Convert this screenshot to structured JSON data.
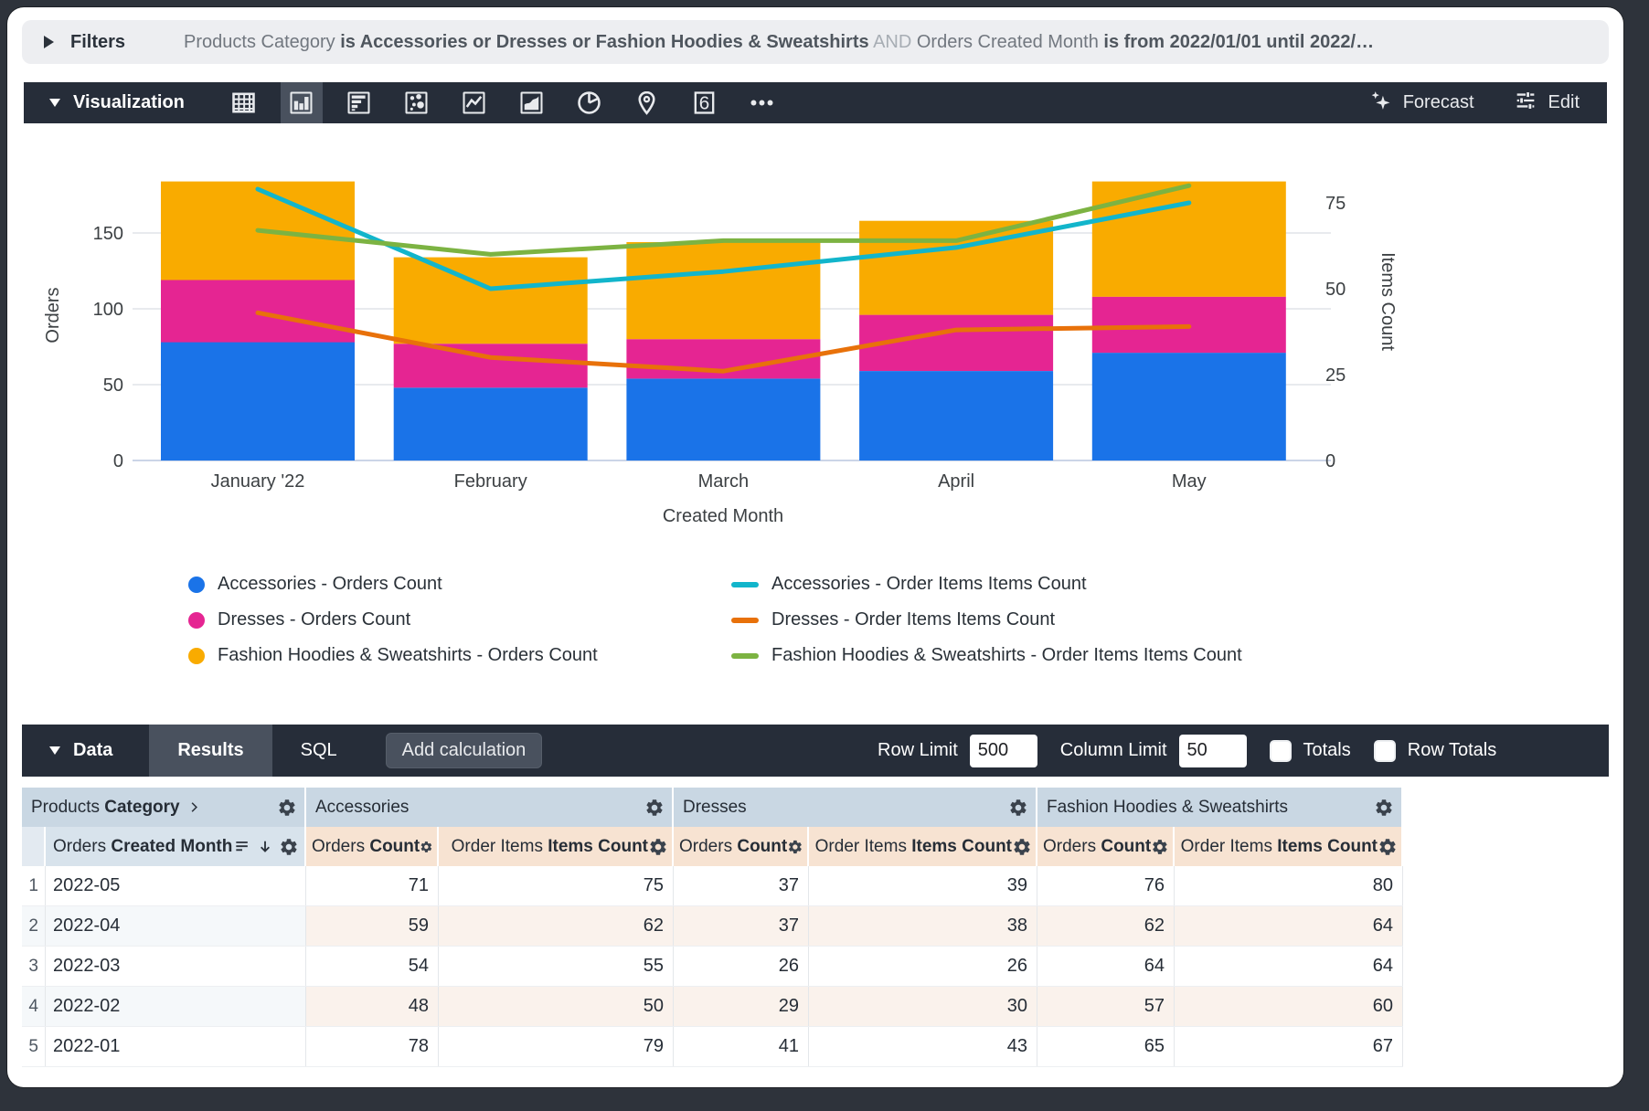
{
  "filters": {
    "label": "Filters",
    "segments": [
      {
        "text": "Products Category ",
        "style": "plain"
      },
      {
        "text": "is Accessories or Dresses or Fashion Hoodies & Sweatshirts",
        "style": "bold"
      },
      {
        "text": " AND ",
        "style": "and"
      },
      {
        "text": "Orders Created Month ",
        "style": "plain"
      },
      {
        "text": "is from 2022/01/01 until 2022/…",
        "style": "bold"
      }
    ]
  },
  "viz_toolbar": {
    "label": "Visualization",
    "icons": [
      {
        "name": "table-viz-icon",
        "selected": false
      },
      {
        "name": "column-chart-viz-icon",
        "selected": true
      },
      {
        "name": "bar-chart-viz-icon",
        "selected": false
      },
      {
        "name": "scatter-viz-icon",
        "selected": false
      },
      {
        "name": "line-chart-viz-icon",
        "selected": false
      },
      {
        "name": "area-chart-viz-icon",
        "selected": false
      },
      {
        "name": "pie-chart-viz-icon",
        "selected": false
      },
      {
        "name": "map-viz-icon",
        "selected": false
      },
      {
        "name": "single-value-viz-icon",
        "selected": false
      },
      {
        "name": "more-viz-icon",
        "selected": false
      }
    ],
    "single_value_glyph": "6",
    "forecast_label": "Forecast",
    "edit_label": "Edit"
  },
  "chart_data": {
    "type": "combo: stacked column + line, dual y-axis",
    "categories": [
      "January '22",
      "February",
      "March",
      "April",
      "May"
    ],
    "x_axis_title": "Created Month",
    "left_axis": {
      "title": "Orders",
      "ticks": [
        0,
        50,
        100,
        150
      ]
    },
    "right_axis": {
      "title": "Items Count",
      "ticks": [
        0,
        25,
        50,
        75
      ]
    },
    "bar_series": [
      {
        "name": "Accessories - Orders Count",
        "color": "#1A73E8",
        "values": [
          78,
          48,
          54,
          59,
          71
        ]
      },
      {
        "name": "Dresses - Orders Count",
        "color": "#E52592",
        "values": [
          41,
          29,
          26,
          37,
          37
        ]
      },
      {
        "name": "Fashion Hoodies & Sweatshirts - Orders Count",
        "color": "#F9AB00",
        "values": [
          65,
          57,
          64,
          62,
          76
        ]
      }
    ],
    "line_series": [
      {
        "name": "Accessories - Order Items Items Count",
        "color": "#12B5CB",
        "values": [
          79,
          50,
          55,
          62,
          75
        ]
      },
      {
        "name": "Dresses - Order Items Items Count",
        "color": "#E8710A",
        "values": [
          43,
          30,
          26,
          38,
          39
        ]
      },
      {
        "name": "Fashion Hoodies & Sweatshirts - Order Items Items Count",
        "color": "#7CB342",
        "values": [
          67,
          60,
          64,
          64,
          80
        ]
      }
    ]
  },
  "data_toolbar": {
    "label": "Data",
    "tabs": [
      {
        "label": "Results",
        "selected": true
      },
      {
        "label": "SQL",
        "selected": false
      }
    ],
    "add_calculation_label": "Add calculation",
    "row_limit_label": "Row Limit",
    "row_limit_value": "500",
    "column_limit_label": "Column Limit",
    "column_limit_value": "50",
    "totals_label": "Totals",
    "totals_checked": false,
    "row_totals_label": "Row Totals",
    "row_totals_checked": false
  },
  "table": {
    "dimension_header": {
      "prefix": "Products ",
      "bold": "Category"
    },
    "row2_dimension": {
      "prefix": "Orders ",
      "bold": "Created Month"
    },
    "sections": [
      "Accessories",
      "Dresses",
      "Fashion Hoodies & Sweatshirts"
    ],
    "measure_headers": [
      {
        "prefix": "Orders ",
        "bold": "Count"
      },
      {
        "prefix": "Order Items ",
        "bold": "Items Count"
      }
    ],
    "rows": [
      {
        "num": "1",
        "month": "2022-05",
        "values": [
          71,
          75,
          37,
          39,
          76,
          80
        ]
      },
      {
        "num": "2",
        "month": "2022-04",
        "values": [
          59,
          62,
          37,
          38,
          62,
          64
        ]
      },
      {
        "num": "3",
        "month": "2022-03",
        "values": [
          54,
          55,
          26,
          26,
          64,
          64
        ]
      },
      {
        "num": "4",
        "month": "2022-02",
        "values": [
          48,
          50,
          29,
          30,
          57,
          60
        ]
      },
      {
        "num": "5",
        "month": "2022-01",
        "values": [
          78,
          79,
          41,
          43,
          65,
          67
        ]
      }
    ]
  }
}
